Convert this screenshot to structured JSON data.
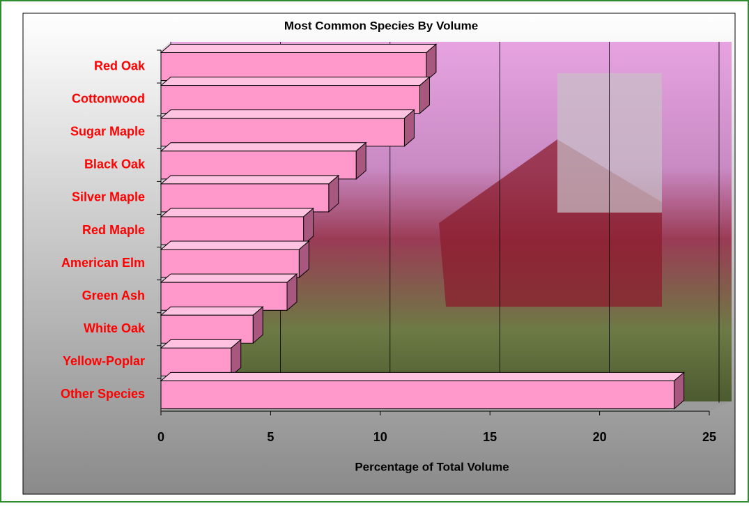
{
  "chart_data": {
    "type": "bar",
    "orientation": "horizontal",
    "title": "Most Common Species By Volume",
    "x_label": "Percentage of Total Volume",
    "categories": [
      "Red Oak",
      "Cottonwood",
      "Sugar Maple",
      "Black Oak",
      "Silver Maple",
      "Red Maple",
      "American Elm",
      "Green Ash",
      "White Oak",
      "Yellow-Poplar",
      "Other Species"
    ],
    "values": [
      12.1,
      11.8,
      11.1,
      8.9,
      7.65,
      6.5,
      6.3,
      5.75,
      4.2,
      3.2,
      23.4
    ],
    "color": "#ff99cc",
    "xlim": [
      0,
      25
    ],
    "xticks": [
      0,
      5,
      10,
      15,
      20,
      25
    ],
    "grid": true
  }
}
